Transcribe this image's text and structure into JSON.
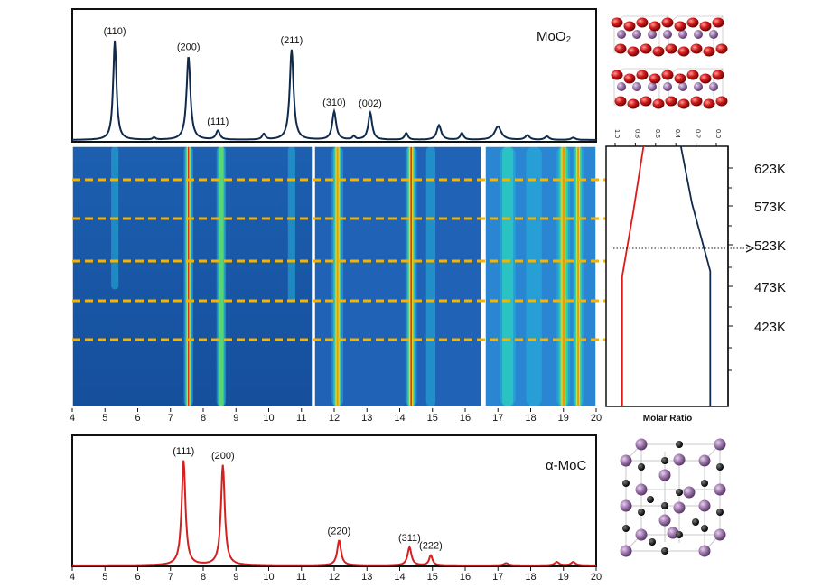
{
  "chart_data": [
    {
      "type": "line",
      "panel": "top",
      "title": "MoO₂",
      "xlim": [
        4,
        20
      ],
      "color": "#0e2a4c",
      "peaks": [
        {
          "x": 5.3,
          "y": 0.88,
          "w": 0.06,
          "label": "(110)"
        },
        {
          "x": 7.55,
          "y": 0.74,
          "w": 0.07,
          "label": "(200)"
        },
        {
          "x": 8.45,
          "y": 0.08,
          "w": 0.07,
          "label": "(111)"
        },
        {
          "x": 10.7,
          "y": 0.8,
          "w": 0.07,
          "label": "(211)"
        },
        {
          "x": 12.0,
          "y": 0.25,
          "w": 0.07,
          "label": "(310)"
        },
        {
          "x": 13.1,
          "y": 0.24,
          "w": 0.07,
          "label": "(002)"
        },
        {
          "x": 6.5,
          "y": 0.02,
          "w": 0.05,
          "label": ""
        },
        {
          "x": 9.85,
          "y": 0.05,
          "w": 0.06,
          "label": ""
        },
        {
          "x": 12.6,
          "y": 0.03,
          "w": 0.05,
          "label": ""
        },
        {
          "x": 14.2,
          "y": 0.06,
          "w": 0.06,
          "label": ""
        },
        {
          "x": 15.2,
          "y": 0.13,
          "w": 0.08,
          "label": ""
        },
        {
          "x": 15.9,
          "y": 0.06,
          "w": 0.06,
          "label": ""
        },
        {
          "x": 17.0,
          "y": 0.12,
          "w": 0.12,
          "label": ""
        },
        {
          "x": 17.9,
          "y": 0.04,
          "w": 0.08,
          "label": ""
        },
        {
          "x": 18.5,
          "y": 0.03,
          "w": 0.08,
          "label": ""
        },
        {
          "x": 19.3,
          "y": 0.02,
          "w": 0.08,
          "label": ""
        }
      ]
    },
    {
      "type": "heatmap",
      "panel": "middle",
      "xlim": [
        4,
        20
      ],
      "x_ticks": [
        4,
        5,
        6,
        7,
        8,
        9,
        10,
        11,
        12,
        13,
        14,
        15,
        16,
        17,
        18,
        19,
        20
      ],
      "segments": [
        [
          4,
          11.3
        ],
        [
          11.3,
          16.9
        ],
        [
          16.9,
          20
        ]
      ],
      "temperature_labels": [
        "623K",
        "573K",
        "523K",
        "473K",
        "423K"
      ],
      "dashed_line_color": "#f5b400",
      "streaks": [
        {
          "x": 5.3,
          "w": 0.07,
          "i": 0.2,
          "fade": 0.55
        },
        {
          "x": 7.55,
          "w": 0.09,
          "i": 1.0
        },
        {
          "x": 8.55,
          "w": 0.09,
          "i": 0.45
        },
        {
          "x": 10.7,
          "w": 0.07,
          "i": 0.15,
          "fade": 0.6
        },
        {
          "x": 12.1,
          "w": 0.11,
          "i": 0.85
        },
        {
          "x": 14.35,
          "w": 0.11,
          "i": 0.95
        },
        {
          "x": 14.95,
          "w": 0.09,
          "i": 0.2
        },
        {
          "x": 17.3,
          "w": 0.15,
          "i": 0.3
        },
        {
          "x": 18.1,
          "w": 0.15,
          "i": 0.2
        },
        {
          "x": 19.0,
          "w": 0.13,
          "i": 0.9
        },
        {
          "x": 19.45,
          "w": 0.1,
          "i": 0.9
        }
      ]
    },
    {
      "type": "line",
      "panel": "side",
      "xlabel": "Molar Ratio",
      "xlim": [
        1.0,
        0.0
      ],
      "x_ticks": [
        "1.0",
        "0.8",
        "0.6",
        "0.4",
        "0.2",
        "0.0"
      ],
      "series": [
        {
          "color": "#e01818",
          "points": [
            [
              0.72,
              0.0
            ],
            [
              0.82,
              0.25
            ],
            [
              0.93,
              0.5
            ],
            [
              0.93,
              1.0
            ]
          ]
        },
        {
          "color": "#0e2a4c",
          "points": [
            [
              0.35,
              0.0
            ],
            [
              0.24,
              0.22
            ],
            [
              0.06,
              0.48
            ],
            [
              0.06,
              1.0
            ]
          ]
        }
      ]
    },
    {
      "type": "line",
      "panel": "bottom",
      "title": "α-MoC",
      "xlim": [
        4,
        20
      ],
      "x_ticks": [
        4,
        5,
        6,
        7,
        8,
        9,
        10,
        11,
        12,
        13,
        14,
        15,
        16,
        17,
        18,
        19,
        20
      ],
      "color": "#d42020",
      "peaks": [
        {
          "x": 7.4,
          "y": 0.92,
          "w": 0.07,
          "label": "(111)"
        },
        {
          "x": 8.6,
          "y": 0.88,
          "w": 0.07,
          "label": "(200)"
        },
        {
          "x": 12.15,
          "y": 0.22,
          "w": 0.07,
          "label": "(220)"
        },
        {
          "x": 14.3,
          "y": 0.16,
          "w": 0.07,
          "label": "(311)"
        },
        {
          "x": 14.95,
          "y": 0.09,
          "w": 0.06,
          "label": "(222)"
        },
        {
          "x": 17.25,
          "y": 0.02,
          "w": 0.08,
          "label": ""
        },
        {
          "x": 18.8,
          "y": 0.03,
          "w": 0.08,
          "label": ""
        },
        {
          "x": 19.3,
          "y": 0.03,
          "w": 0.08,
          "label": ""
        }
      ]
    }
  ],
  "colors": {
    "mo_atom": "#a27bb0",
    "oxygen_atom": "#d21a1a",
    "carbon_atom": "#111111",
    "cell_frame": "#c8c8c8"
  }
}
